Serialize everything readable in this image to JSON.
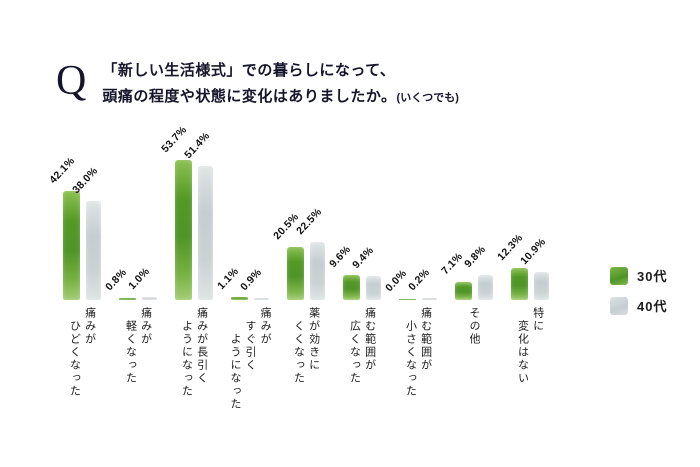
{
  "header": {
    "q_mark": "Q",
    "title_line1": "「新しい生活様式」での暮らしになって、",
    "title_line2": "頭痛の程度や状態に変化はありましたか。",
    "title_suffix": "(いくつでも)"
  },
  "legend": [
    {
      "label": "30代",
      "color": "#4f9427"
    },
    {
      "label": "40代",
      "color": "#c9d0d3"
    }
  ],
  "chart_data": {
    "type": "bar",
    "title": "「新しい生活様式」での暮らしになって、頭痛の程度や状態に変化はありましたか。(いくつでも)",
    "categories": [
      "痛みがひどくなった",
      "痛みが軽くなった",
      "痛みが長引くようになった",
      "痛みがすぐ引くようになった",
      "薬が効きにくくなった",
      "痛む範囲が広くなった",
      "痛む範囲が小さくなった",
      "その他",
      "特に変化はない"
    ],
    "category_lines": [
      [
        "痛みが",
        "ひどくなった"
      ],
      [
        "痛みが",
        "軽くなった"
      ],
      [
        "痛みが長引く",
        "ようになった"
      ],
      [
        "痛みが",
        "すぐ引く",
        "ようになった"
      ],
      [
        "薬が効きに",
        "くくなった"
      ],
      [
        "痛む範囲が",
        "広くなった"
      ],
      [
        "痛む範囲が",
        "小さくなった"
      ],
      [
        "その他"
      ],
      [
        "特に",
        "変化はない"
      ]
    ],
    "series": [
      {
        "name": "30代",
        "color": "#4f9427",
        "values": [
          42.1,
          0.8,
          53.7,
          1.1,
          20.5,
          9.6,
          0.0,
          7.1,
          12.3
        ]
      },
      {
        "name": "40代",
        "color": "#c9d0d3",
        "values": [
          38.0,
          1.0,
          51.4,
          0.9,
          22.5,
          9.4,
          0.2,
          9.8,
          10.9
        ]
      }
    ],
    "value_suffix": "%",
    "ylim": [
      0,
      60
    ],
    "grid": false,
    "legend_position": "right",
    "value_labels_rotated": true
  }
}
